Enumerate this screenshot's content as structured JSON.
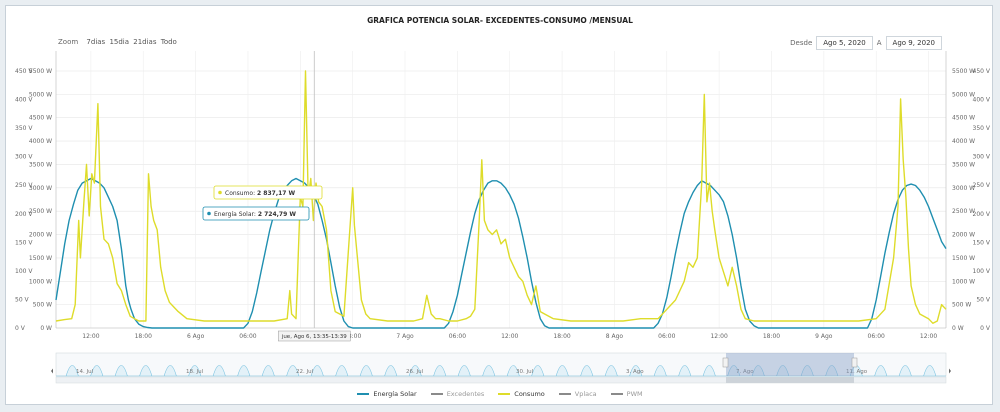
{
  "title": "GRAFICA POTENCIA SOLAR- EXCEDENTES-CONSUMO /MENSUAL",
  "zoom": {
    "label": "Zoom",
    "options": [
      "7dias",
      "15dia",
      "21dias",
      "Todo"
    ]
  },
  "range": {
    "from_label": "Desde",
    "from_value": "Ago 5, 2020",
    "to_label": "A",
    "to_value": "Ago 9, 2020"
  },
  "colors": {
    "solar": "#1f8fb0",
    "consumo": "#dedc2a",
    "excedentes": "#8a8a8a",
    "vplaca": "#8a8a8a",
    "pwm": "#8a8a8a",
    "navigator_fill": "#e3f1f8",
    "navigator_line": "#7cc3e0",
    "selection": "#8aa2c8"
  },
  "tooltip": {
    "consumo": {
      "label": "Consumo:",
      "value": "2 837,17 W"
    },
    "solar": {
      "label": "Energía Solar:",
      "value": "2 724,79 W"
    },
    "crosshair_label": "jue, Ago 6, 13:35-13:39"
  },
  "navigator_labels": [
    "14. Jul",
    "18. Jul",
    "22. Jul",
    "26. Jul",
    "30. Jul",
    "3. Ago",
    "7. Ago",
    "11. Ago"
  ],
  "legend": [
    {
      "name": "Energía Solar",
      "color": "#1f8fb0",
      "active": true
    },
    {
      "name": "Excedentes",
      "color": "#8a8a8a",
      "active": false
    },
    {
      "name": "Consumo",
      "color": "#dedc2a",
      "active": true
    },
    {
      "name": "Vplaca",
      "color": "#8a8a8a",
      "active": false
    },
    {
      "name": "PWM",
      "color": "#8a8a8a",
      "active": false
    }
  ],
  "chart_data": {
    "type": "line",
    "title": "GRAFICA POTENCIA SOLAR- EXCEDENTES-CONSUMO /MENSUAL",
    "x_range": [
      "2020-08-05 08:00",
      "2020-08-09 16:00"
    ],
    "x_ticks": [
      "12:00",
      "18:00",
      "6 Ago",
      "06:00",
      "12:00",
      "18:00",
      "7 Ago",
      "06:00",
      "12:00",
      "18:00",
      "8 Ago",
      "06:00",
      "12:00",
      "18:00",
      "9 Ago",
      "06:00",
      "12:00"
    ],
    "y_left_ticks": [
      "0 W",
      "500 W",
      "1000 W",
      "1500 W",
      "2000 W",
      "2500 W",
      "3000 W",
      "3500 W",
      "4000 W",
      "4500 W",
      "5000 W",
      "5500 W"
    ],
    "y_left_range": [
      0,
      5500
    ],
    "y_right_ticks": [
      "0 W",
      "500 W",
      "1000 W",
      "1500 W",
      "2000 W",
      "2500 W",
      "3000 W",
      "3500 W",
      "4000 W",
      "4500 W",
      "5000 W",
      "5500 W"
    ],
    "y_volt_ticks": [
      "0 V",
      "50 V",
      "100 V",
      "150 V",
      "200 V",
      "250 V",
      "300 V",
      "350 V",
      "400 V",
      "450 V"
    ],
    "y_volt_range": [
      0,
      450
    ],
    "series": [
      {
        "name": "Energía Solar",
        "color": "#1f8fb0",
        "points": [
          [
            8.0,
            600
          ],
          [
            8.5,
            1200
          ],
          [
            9.0,
            1800
          ],
          [
            9.5,
            2300
          ],
          [
            10.0,
            2650
          ],
          [
            10.5,
            2950
          ],
          [
            11.0,
            3100
          ],
          [
            11.5,
            3150
          ],
          [
            12.0,
            3200
          ],
          [
            12.5,
            3150
          ],
          [
            13.0,
            3100
          ],
          [
            13.5,
            3000
          ],
          [
            14.0,
            2800
          ],
          [
            14.5,
            2600
          ],
          [
            15.0,
            2300
          ],
          [
            15.5,
            1700
          ],
          [
            16.0,
            900
          ],
          [
            16.3,
            600
          ],
          [
            16.6,
            400
          ],
          [
            17.0,
            200
          ],
          [
            17.5,
            80
          ],
          [
            18.0,
            30
          ],
          [
            18.5,
            10
          ],
          [
            19.0,
            0
          ],
          [
            29.5,
            0
          ],
          [
            30.0,
            100
          ],
          [
            30.5,
            350
          ],
          [
            31.0,
            750
          ],
          [
            31.5,
            1200
          ],
          [
            32.0,
            1650
          ],
          [
            32.5,
            2100
          ],
          [
            33.0,
            2450
          ],
          [
            33.5,
            2750
          ],
          [
            34.0,
            2900
          ],
          [
            34.5,
            3050
          ],
          [
            35.0,
            3150
          ],
          [
            35.5,
            3200
          ],
          [
            36.0,
            3150
          ],
          [
            36.5,
            3100
          ],
          [
            37.0,
            3000
          ],
          [
            37.5,
            2850
          ],
          [
            38.0,
            2650
          ],
          [
            38.5,
            2300
          ],
          [
            39.0,
            1900
          ],
          [
            39.5,
            1400
          ],
          [
            40.0,
            900
          ],
          [
            40.5,
            450
          ],
          [
            41.0,
            150
          ],
          [
            41.5,
            30
          ],
          [
            42.0,
            0
          ],
          [
            52.5,
            0
          ],
          [
            53.0,
            100
          ],
          [
            53.5,
            350
          ],
          [
            54.0,
            700
          ],
          [
            54.5,
            1150
          ],
          [
            55.0,
            1600
          ],
          [
            55.5,
            2050
          ],
          [
            56.0,
            2450
          ],
          [
            56.5,
            2750
          ],
          [
            57.0,
            2950
          ],
          [
            57.5,
            3100
          ],
          [
            58.0,
            3150
          ],
          [
            58.5,
            3150
          ],
          [
            59.0,
            3100
          ],
          [
            59.5,
            3000
          ],
          [
            60.0,
            2850
          ],
          [
            60.5,
            2650
          ],
          [
            61.0,
            2350
          ],
          [
            61.5,
            1950
          ],
          [
            62.0,
            1500
          ],
          [
            62.5,
            1000
          ],
          [
            63.0,
            550
          ],
          [
            63.5,
            200
          ],
          [
            64.0,
            50
          ],
          [
            64.5,
            0
          ],
          [
            76.5,
            0
          ],
          [
            77.0,
            100
          ],
          [
            77.5,
            300
          ],
          [
            78.0,
            650
          ],
          [
            78.5,
            1100
          ],
          [
            79.0,
            1600
          ],
          [
            79.5,
            2050
          ],
          [
            80.0,
            2450
          ],
          [
            80.5,
            2700
          ],
          [
            81.0,
            2900
          ],
          [
            81.5,
            3050
          ],
          [
            82.0,
            3150
          ],
          [
            82.5,
            3100
          ],
          [
            83.0,
            3050
          ],
          [
            83.5,
            2950
          ],
          [
            84.0,
            2850
          ],
          [
            84.5,
            2700
          ],
          [
            85.0,
            2400
          ],
          [
            85.5,
            2000
          ],
          [
            86.0,
            1500
          ],
          [
            86.5,
            900
          ],
          [
            87.0,
            400
          ],
          [
            87.5,
            150
          ],
          [
            88.0,
            50
          ],
          [
            88.5,
            0
          ],
          [
            101.0,
            0
          ],
          [
            101.5,
            200
          ],
          [
            102.0,
            600
          ],
          [
            102.5,
            1100
          ],
          [
            103.0,
            1600
          ],
          [
            103.5,
            2050
          ],
          [
            104.0,
            2450
          ],
          [
            104.5,
            2750
          ],
          [
            105.0,
            2950
          ],
          [
            105.5,
            3050
          ],
          [
            106.0,
            3080
          ],
          [
            106.5,
            3050
          ],
          [
            107.0,
            2950
          ],
          [
            107.5,
            2800
          ],
          [
            108.0,
            2600
          ],
          [
            108.5,
            2350
          ],
          [
            109.0,
            2100
          ],
          [
            109.5,
            1850
          ],
          [
            110.0,
            1700
          ]
        ]
      },
      {
        "name": "Consumo",
        "color": "#dedc2a",
        "points": [
          [
            8.0,
            150
          ],
          [
            9.0,
            180
          ],
          [
            9.8,
            200
          ],
          [
            10.2,
            500
          ],
          [
            10.6,
            2300
          ],
          [
            10.8,
            1500
          ],
          [
            11.2,
            2700
          ],
          [
            11.5,
            3500
          ],
          [
            11.8,
            2400
          ],
          [
            12.1,
            3300
          ],
          [
            12.4,
            3100
          ],
          [
            12.8,
            4800
          ],
          [
            13.1,
            2600
          ],
          [
            13.5,
            1900
          ],
          [
            14.0,
            1800
          ],
          [
            14.5,
            1500
          ],
          [
            15.0,
            950
          ],
          [
            15.5,
            800
          ],
          [
            16.0,
            500
          ],
          [
            16.5,
            250
          ],
          [
            17.0,
            200
          ],
          [
            17.5,
            150
          ],
          [
            18.3,
            150
          ],
          [
            18.6,
            3300
          ],
          [
            18.9,
            2600
          ],
          [
            19.2,
            2300
          ],
          [
            19.6,
            2100
          ],
          [
            20.0,
            1300
          ],
          [
            20.5,
            800
          ],
          [
            21.0,
            550
          ],
          [
            21.5,
            450
          ],
          [
            22.0,
            350
          ],
          [
            23.0,
            200
          ],
          [
            25.0,
            150
          ],
          [
            27.0,
            150
          ],
          [
            29.0,
            150
          ],
          [
            31.0,
            150
          ],
          [
            33.0,
            150
          ],
          [
            34.5,
            200
          ],
          [
            34.8,
            800
          ],
          [
            35.0,
            300
          ],
          [
            35.5,
            200
          ],
          [
            36.0,
            2800
          ],
          [
            36.3,
            2600
          ],
          [
            36.6,
            5500
          ],
          [
            36.9,
            2800
          ],
          [
            37.2,
            3200
          ],
          [
            37.5,
            2300
          ],
          [
            37.8,
            3100
          ],
          [
            38.1,
            2700
          ],
          [
            38.5,
            2600
          ],
          [
            39.0,
            2100
          ],
          [
            39.5,
            800
          ],
          [
            40.0,
            350
          ],
          [
            41.0,
            250
          ],
          [
            42.0,
            3000
          ],
          [
            42.2,
            2200
          ],
          [
            42.5,
            1600
          ],
          [
            43.0,
            600
          ],
          [
            43.5,
            300
          ],
          [
            44.0,
            200
          ],
          [
            46.0,
            150
          ],
          [
            48.0,
            150
          ],
          [
            49.0,
            150
          ],
          [
            50.0,
            200
          ],
          [
            50.5,
            700
          ],
          [
            51.0,
            300
          ],
          [
            51.5,
            200
          ],
          [
            52.0,
            200
          ],
          [
            53.0,
            150
          ],
          [
            54.0,
            150
          ],
          [
            55.0,
            200
          ],
          [
            55.5,
            250
          ],
          [
            56.0,
            400
          ],
          [
            56.5,
            2300
          ],
          [
            56.8,
            3600
          ],
          [
            57.1,
            2300
          ],
          [
            57.5,
            2100
          ],
          [
            58.0,
            2000
          ],
          [
            58.5,
            2100
          ],
          [
            59.0,
            1800
          ],
          [
            59.5,
            1900
          ],
          [
            60.0,
            1500
          ],
          [
            60.5,
            1300
          ],
          [
            61.0,
            1100
          ],
          [
            61.5,
            1000
          ],
          [
            62.0,
            700
          ],
          [
            62.5,
            500
          ],
          [
            63.0,
            900
          ],
          [
            63.5,
            350
          ],
          [
            64.0,
            300
          ],
          [
            65.0,
            200
          ],
          [
            67.0,
            150
          ],
          [
            69.0,
            150
          ],
          [
            71.0,
            150
          ],
          [
            73.0,
            150
          ],
          [
            75.0,
            200
          ],
          [
            77.0,
            200
          ],
          [
            79.0,
            600
          ],
          [
            80.0,
            1000
          ],
          [
            80.5,
            1400
          ],
          [
            81.0,
            1300
          ],
          [
            81.5,
            1500
          ],
          [
            82.0,
            3100
          ],
          [
            82.3,
            5000
          ],
          [
            82.6,
            2700
          ],
          [
            82.9,
            3100
          ],
          [
            83.2,
            2500
          ],
          [
            83.5,
            2100
          ],
          [
            84.0,
            1500
          ],
          [
            84.5,
            1200
          ],
          [
            85.0,
            900
          ],
          [
            85.5,
            1300
          ],
          [
            86.0,
            900
          ],
          [
            86.5,
            400
          ],
          [
            87.0,
            200
          ],
          [
            88.0,
            150
          ],
          [
            90.0,
            150
          ],
          [
            92.0,
            150
          ],
          [
            94.0,
            150
          ],
          [
            96.0,
            150
          ],
          [
            98.0,
            150
          ],
          [
            100.0,
            150
          ],
          [
            102.0,
            200
          ],
          [
            103.0,
            400
          ],
          [
            104.0,
            1500
          ],
          [
            104.5,
            2600
          ],
          [
            104.8,
            4900
          ],
          [
            105.1,
            3600
          ],
          [
            105.4,
            2800
          ],
          [
            105.7,
            1700
          ],
          [
            106.0,
            900
          ],
          [
            106.5,
            500
          ],
          [
            107.0,
            300
          ],
          [
            108.0,
            200
          ],
          [
            108.5,
            100
          ],
          [
            109.0,
            150
          ],
          [
            109.5,
            500
          ],
          [
            110.0,
            400
          ]
        ]
      }
    ],
    "tooltip_time": "jue, Ago 6, 13:35-13:39"
  }
}
